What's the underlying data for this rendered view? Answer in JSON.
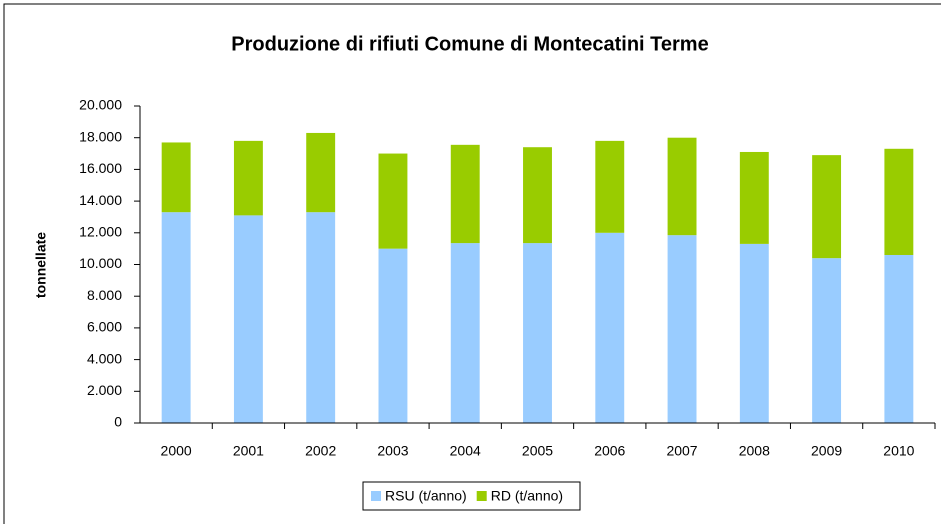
{
  "chart_data": {
    "type": "bar",
    "stacked": true,
    "title": "Produzione di rifiuti Comune di Montecatini Terme",
    "y_label": "tonnellate",
    "categories": [
      "2000",
      "2001",
      "2002",
      "2003",
      "2004",
      "2005",
      "2006",
      "2007",
      "2008",
      "2009",
      "2010"
    ],
    "series": [
      {
        "name": "RSU (t/anno)",
        "color": "#99ccff",
        "values": [
          13300,
          13100,
          13300,
          11000,
          11350,
          11350,
          12000,
          11850,
          11300,
          10400,
          10600
        ]
      },
      {
        "name": "RD (t/anno)",
        "color": "#99cc00",
        "values": [
          4400,
          4700,
          5000,
          6000,
          6200,
          6050,
          5800,
          6150,
          5800,
          6500,
          6700
        ]
      }
    ],
    "ylim": [
      0,
      20000
    ],
    "yticks": [
      0,
      {
        "value": 2000,
        "label": "2.000"
      },
      {
        "value": 4000,
        "label": "4.000"
      },
      {
        "value": 6000,
        "label": "6.000"
      },
      {
        "value": 8000,
        "label": "8.000"
      },
      {
        "value": 10000,
        "label": "10.000"
      },
      {
        "value": 12000,
        "label": "12.000"
      },
      {
        "value": 14000,
        "label": "14.000"
      },
      {
        "value": 16000,
        "label": "16.000"
      },
      {
        "value": 18000,
        "label": "18.000"
      },
      {
        "value": 20000,
        "label": "20.000"
      }
    ],
    "legend": "bottom"
  }
}
